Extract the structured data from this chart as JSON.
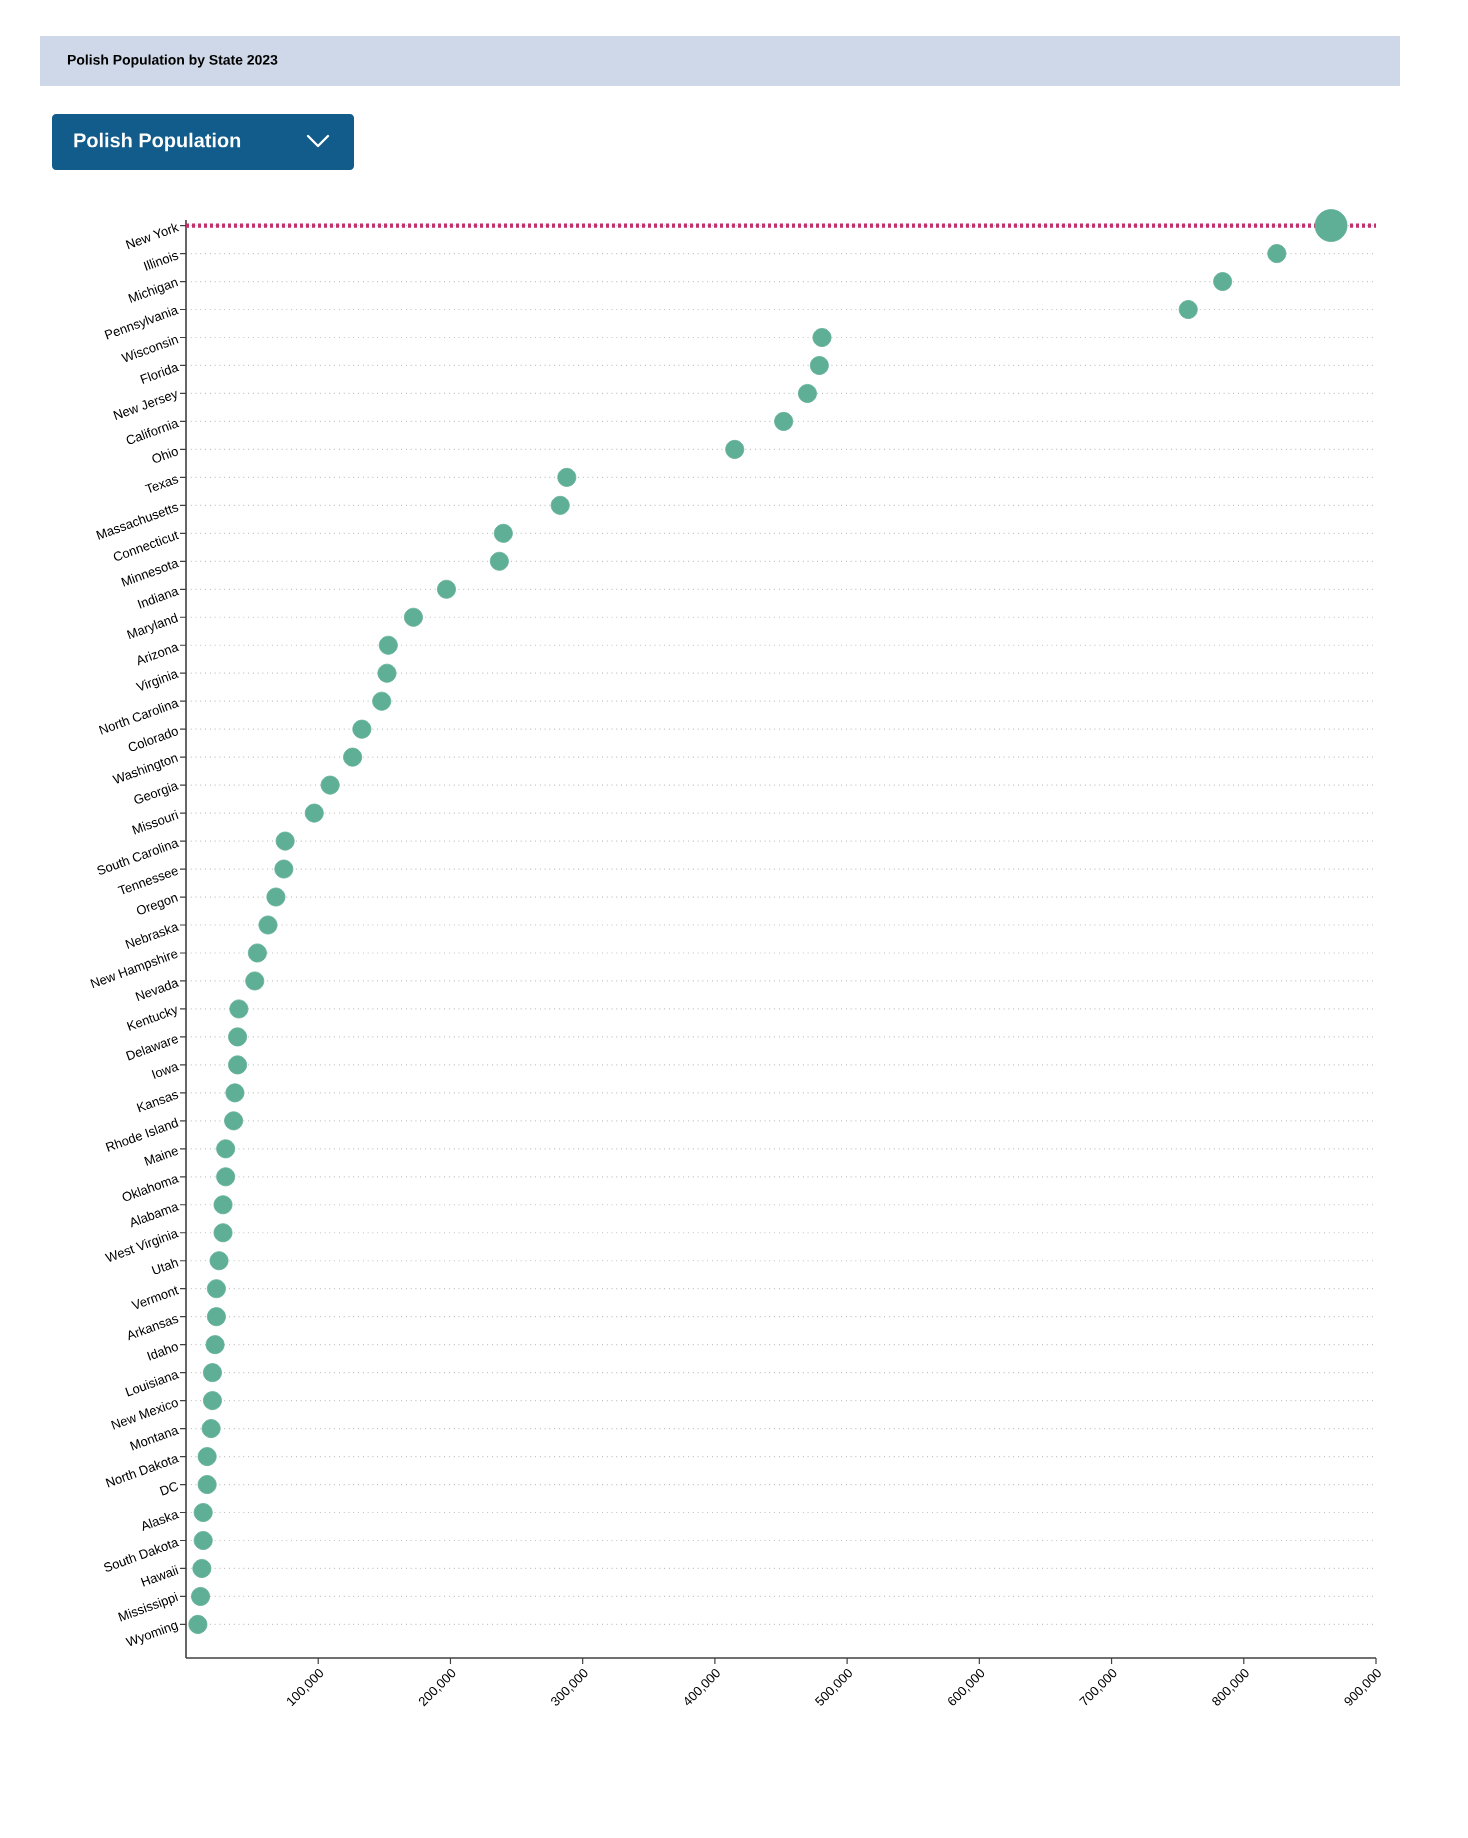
{
  "chart_data": {
    "type": "bubble",
    "title": "Polish Population by State 2023",
    "subtitle": "Polish Population",
    "categories": [
      "New York",
      "Illinois",
      "Michigan",
      "Pennsylvania",
      "Wisconsin",
      "Florida",
      "New Jersey",
      "California",
      "Ohio",
      "Texas",
      "Massachusetts",
      "Connecticut",
      "Minnesota",
      "Indiana",
      "Maryland",
      "Arizona",
      "Virginia",
      "North Carolina",
      "Colorado",
      "Washington",
      "Georgia",
      "Missouri",
      "South Carolina",
      "Tennessee",
      "Oregon",
      "Nebraska",
      "New Hampshire",
      "Nevada",
      "Kentucky",
      "Delaware",
      "Iowa",
      "Kansas",
      "Rhode Island",
      "Maine",
      "Oklahoma",
      "Alabama",
      "West Virginia",
      "Utah",
      "Vermont",
      "Arkansas",
      "Idaho",
      "Louisiana",
      "New Mexico",
      "Montana",
      "North Dakota",
      "DC",
      "Alaska",
      "South Dakota",
      "Hawaii",
      "Mississippi",
      "Wyoming"
    ],
    "orientation": "horizontal",
    "color": "#5fae96",
    "values": [
      866000,
      825000,
      784000,
      758000,
      481000,
      479000,
      470000,
      452000,
      415000,
      288000,
      283000,
      240000,
      237000,
      197000,
      172000,
      153000,
      152000,
      148000,
      133000,
      126000,
      109000,
      97000,
      75000,
      74000,
      68000,
      62000,
      54000,
      52000,
      40000,
      39000,
      39000,
      37000,
      36000,
      30000,
      30000,
      28000,
      28000,
      25000,
      23000,
      23000,
      22000,
      20000,
      20000,
      19000,
      16000,
      16000,
      13000,
      13000,
      12000,
      11000,
      9000
    ],
    "sizes": [
      1,
      0.32,
      0.32,
      0.32,
      0.32,
      0.32,
      0.32,
      0.32,
      0.32,
      0.32,
      0.32,
      0.32,
      0.32,
      0.32,
      0.32,
      0.32,
      0.32,
      0.32,
      0.32,
      0.32,
      0.32,
      0.32,
      0.32,
      0.32,
      0.32,
      0.32,
      0.32,
      0.32,
      0.32,
      0.32,
      0.32,
      0.32,
      0.32,
      0.32,
      0.32,
      0.32,
      0.32,
      0.32,
      0.32,
      0.32,
      0.32,
      0.32,
      0.32,
      0.32,
      0.32,
      0.32,
      0.32,
      0.32,
      0.32,
      0.32,
      0.32
    ],
    "xlim": [
      0,
      900000
    ],
    "xticks": [
      {
        "value": 100000,
        "label": "100,000"
      },
      {
        "value": 200000,
        "label": "200,000"
      },
      {
        "value": 300000,
        "label": "300,000"
      },
      {
        "value": 400000,
        "label": "400,000"
      },
      {
        "value": 500000,
        "label": "500,000"
      },
      {
        "value": 600000,
        "label": "600,000"
      },
      {
        "value": 700000,
        "label": "700,000"
      },
      {
        "value": 800000,
        "label": "800,000"
      },
      {
        "value": 900000,
        "label": "900,000"
      }
    ],
    "ref_lines": [
      {
        "axis": "y",
        "value": "New York",
        "color": "#c2306e",
        "line_style": "dotted"
      }
    ],
    "grid": "y"
  }
}
